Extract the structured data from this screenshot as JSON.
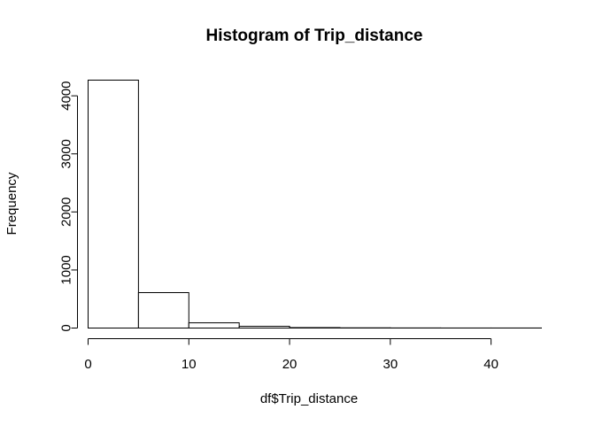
{
  "chart_data": {
    "type": "bar",
    "title": "Histogram of Trip_distance",
    "xlabel": "df$Trip_distance",
    "ylabel": "Frequency",
    "bins": [
      {
        "from": 0,
        "to": 5,
        "count": 4270
      },
      {
        "from": 5,
        "to": 10,
        "count": 610
      },
      {
        "from": 10,
        "to": 15,
        "count": 90
      },
      {
        "from": 15,
        "to": 20,
        "count": 30
      },
      {
        "from": 20,
        "to": 25,
        "count": 8
      },
      {
        "from": 25,
        "to": 30,
        "count": 4
      },
      {
        "from": 30,
        "to": 35,
        "count": 2
      },
      {
        "from": 35,
        "to": 40,
        "count": 1
      },
      {
        "from": 40,
        "to": 45,
        "count": 1
      }
    ],
    "xlim": [
      0,
      45
    ],
    "ylim": [
      0,
      4270
    ],
    "x_ticks": [
      0,
      10,
      20,
      30,
      40
    ],
    "y_ticks": [
      0,
      1000,
      2000,
      3000,
      4000
    ],
    "grid": false,
    "legend": "none"
  }
}
